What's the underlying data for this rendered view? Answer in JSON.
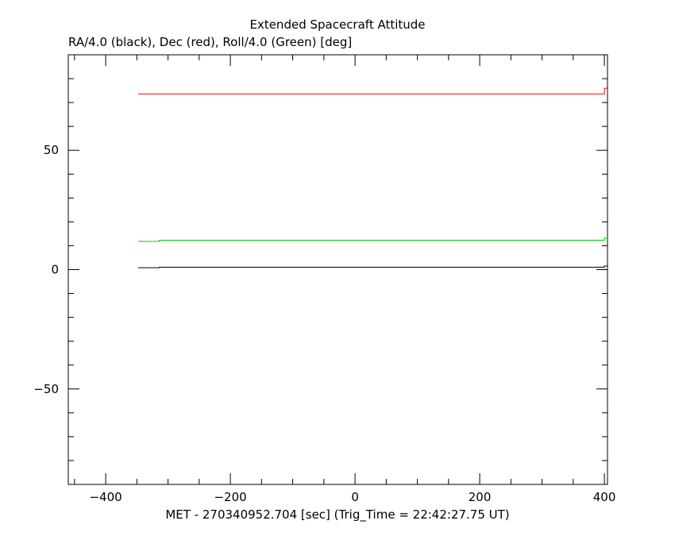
{
  "chart_data": {
    "type": "line",
    "title": "Extended Spacecraft Attitude",
    "subtitle": "RA/4.0 (black), Dec (red), Roll/4.0 (Green) [deg]",
    "xlabel": "MET - 270340952.704 [sec] (Trig_Time = 22:42:27.75 UT)",
    "ylabel": "",
    "xlim": [
      -460,
      405
    ],
    "ylim": [
      -90,
      90
    ],
    "x_ticks": [
      -400,
      -200,
      0,
      200,
      400
    ],
    "y_ticks": [
      -50,
      0,
      50
    ],
    "grid": false,
    "colors": {
      "black": "#000000",
      "red": "#ff0000",
      "green": "#00c800"
    },
    "series": [
      {
        "color": "#ff0000",
        "x": [
          -348,
          398,
          400,
          405
        ],
        "y": [
          73.6,
          73.6,
          76,
          76
        ]
      },
      {
        "color": "#00c800",
        "x": [
          -348,
          -316,
          -314,
          398,
          400,
          405
        ],
        "y": [
          11.8,
          11.8,
          12.3,
          12.3,
          13.2,
          13.2
        ]
      },
      {
        "color": "#000000",
        "x": [
          -348,
          -316,
          -314,
          398,
          400,
          405
        ],
        "y": [
          0.8,
          0.8,
          1.0,
          1.0,
          1.5,
          1.5
        ]
      }
    ]
  }
}
